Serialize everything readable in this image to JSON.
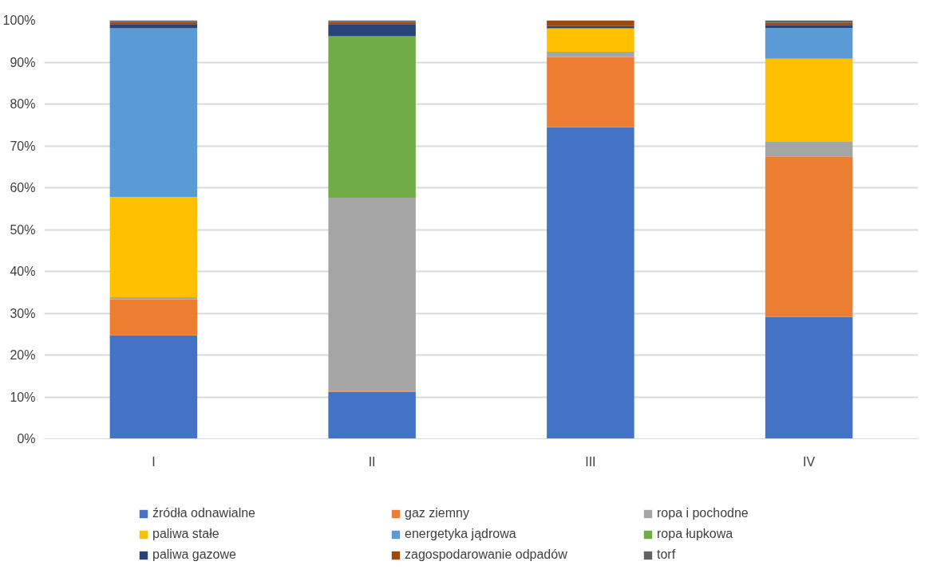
{
  "chart_data": {
    "type": "bar",
    "stacked": true,
    "categories": [
      "I",
      "II",
      "III",
      "IV"
    ],
    "series": [
      {
        "name": "źródła odnawialne",
        "color": "#4472c4",
        "values": [
          24.7,
          11.2,
          74.5,
          29.1
        ]
      },
      {
        "name": "gaz ziemny",
        "color": "#ed7d31",
        "values": [
          8.6,
          0.3,
          16.7,
          38.4
        ]
      },
      {
        "name": "ropa i pochodne",
        "color": "#a5a5a5",
        "values": [
          0.5,
          46.1,
          1.3,
          3.6
        ]
      },
      {
        "name": "paliwa stałe",
        "color": "#ffc000",
        "values": [
          24.0,
          0,
          5.6,
          19.7
        ]
      },
      {
        "name": "energetyka jądrowa",
        "color": "#5b9bd5",
        "values": [
          40.3,
          0,
          0,
          7.4
        ]
      },
      {
        "name": "ropa łupkowa",
        "color": "#70ad47",
        "values": [
          0,
          38.6,
          0,
          0
        ]
      },
      {
        "name": "paliwa gazowe",
        "color": "#264478",
        "values": [
          1.0,
          2.9,
          0.5,
          0.7
        ]
      },
      {
        "name": "zagospodarowanie odpadów",
        "color": "#9e480e",
        "values": [
          0.5,
          0.5,
          1.4,
          0.5
        ]
      },
      {
        "name": "torf",
        "color": "#636363",
        "values": [
          0.4,
          0.4,
          0,
          0.6
        ]
      }
    ],
    "ylim": [
      0,
      100
    ],
    "yticks": [
      {
        "value": 0,
        "label": "0%"
      },
      {
        "value": 10,
        "label": "10%"
      },
      {
        "value": 20,
        "label": "20%"
      },
      {
        "value": 30,
        "label": "30%"
      },
      {
        "value": 40,
        "label": "40%"
      },
      {
        "value": 50,
        "label": "50%"
      },
      {
        "value": 60,
        "label": "60%"
      },
      {
        "value": 70,
        "label": "70%"
      },
      {
        "value": 80,
        "label": "80%"
      },
      {
        "value": 90,
        "label": "90%"
      },
      {
        "value": 100,
        "label": "100%"
      }
    ],
    "grid": "y",
    "legend": "bottom"
  }
}
